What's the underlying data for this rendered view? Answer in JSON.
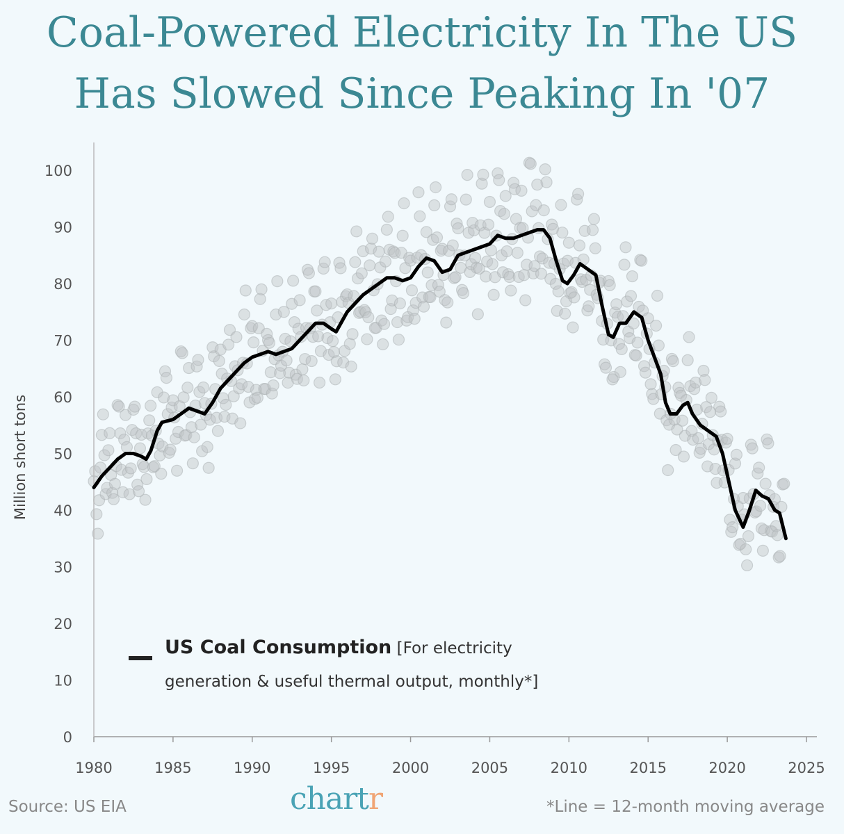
{
  "title_line1": "Coal-Powered Electricity In The US",
  "title_line2": "Has Slowed Since Peaking In '07",
  "legend": {
    "bold": "US Coal Consumption",
    "detail": "[For electricity generation & useful thermal output, monthly*]"
  },
  "footer": {
    "source": "Source: US EIA",
    "logo_main": "chart",
    "logo_end": "r",
    "note": "*Line = 12-month moving average"
  },
  "colors": {
    "title": "#3b8893",
    "line": "#000000",
    "dots": "#c8cdd0",
    "accent": "#4aa3b5",
    "logo_r": "#f0a574"
  },
  "chart_data": {
    "type": "line",
    "title": "Coal-Powered Electricity In The US Has Slowed Since Peaking In '07",
    "xlabel": "",
    "ylabel": "Million short tons",
    "xlim": [
      1980,
      2025
    ],
    "ylim": [
      0,
      100
    ],
    "xticks": [
      1980,
      1985,
      1990,
      1995,
      2000,
      2005,
      2010,
      2015,
      2020,
      2025
    ],
    "yticks": [
      0,
      10,
      20,
      30,
      40,
      50,
      60,
      70,
      80,
      90,
      100
    ],
    "grid": false,
    "legend_position": "bottom-left",
    "moving_average": {
      "name": "US Coal Consumption (12-month moving average)",
      "x": [
        1980.0,
        1980.5,
        1981,
        1981.5,
        1982,
        1982.5,
        1983,
        1983.3,
        1983.6,
        1984,
        1984.3,
        1985,
        1985.5,
        1986,
        1986.5,
        1987,
        1987.5,
        1988,
        1988.5,
        1989,
        1989.5,
        1990,
        1990.5,
        1991,
        1991.5,
        1992,
        1992.5,
        1993,
        1993.5,
        1994,
        1994.5,
        1995,
        1995.3,
        1995.7,
        1996,
        1996.5,
        1997,
        1997.5,
        1998,
        1998.5,
        1999,
        1999.5,
        2000,
        2000.5,
        2001,
        2001.5,
        2002,
        2002.5,
        2003,
        2003.5,
        2004,
        2004.5,
        2005,
        2005.5,
        2006,
        2006.5,
        2007,
        2007.5,
        2008,
        2008.4,
        2008.8,
        2009.2,
        2009.6,
        2009.9,
        2010.3,
        2010.7,
        2011.2,
        2011.7,
        2012.1,
        2012.5,
        2012.8,
        2013.2,
        2013.6,
        2014.1,
        2014.6,
        2015,
        2015.4,
        2015.8,
        2016.1,
        2016.4,
        2016.8,
        2017.2,
        2017.5,
        2017.8,
        2018.3,
        2018.8,
        2019.3,
        2019.7,
        2020.1,
        2020.5,
        2021,
        2021.4,
        2021.8,
        2022.2,
        2022.6,
        2023.0,
        2023.3,
        2023.7
      ],
      "y": [
        44,
        46,
        47.5,
        49,
        50,
        50,
        49.5,
        49,
        50.5,
        54,
        55.5,
        56,
        57,
        58,
        57.5,
        57,
        59,
        61.5,
        63,
        64.5,
        66,
        67,
        67.5,
        68,
        67.5,
        68,
        68.5,
        70,
        71.5,
        73,
        73,
        72,
        71.5,
        73.5,
        75,
        76.5,
        78,
        79,
        80,
        81,
        81,
        80.5,
        81,
        83,
        84.5,
        84,
        82,
        82.5,
        85,
        85.5,
        86,
        86.5,
        87,
        88.5,
        88,
        88,
        88.5,
        89,
        89.5,
        89.5,
        88,
        84,
        80.5,
        80,
        81.5,
        83.5,
        82.5,
        81.5,
        76,
        71,
        70.5,
        73,
        73,
        75,
        74,
        70,
        67,
        64,
        59,
        57,
        57,
        58.5,
        59,
        57,
        55,
        54,
        53,
        50,
        45,
        40,
        37,
        40,
        43.5,
        42.5,
        42,
        40,
        39.5,
        35
      ]
    },
    "monthly": {
      "name": "Monthly consumption",
      "start": 1980.0,
      "end": 2023.6,
      "seasonal_offsets": [
        5,
        0,
        -5,
        -9,
        -6,
        2,
        10,
        11,
        2,
        -5,
        -5,
        3
      ]
    }
  }
}
